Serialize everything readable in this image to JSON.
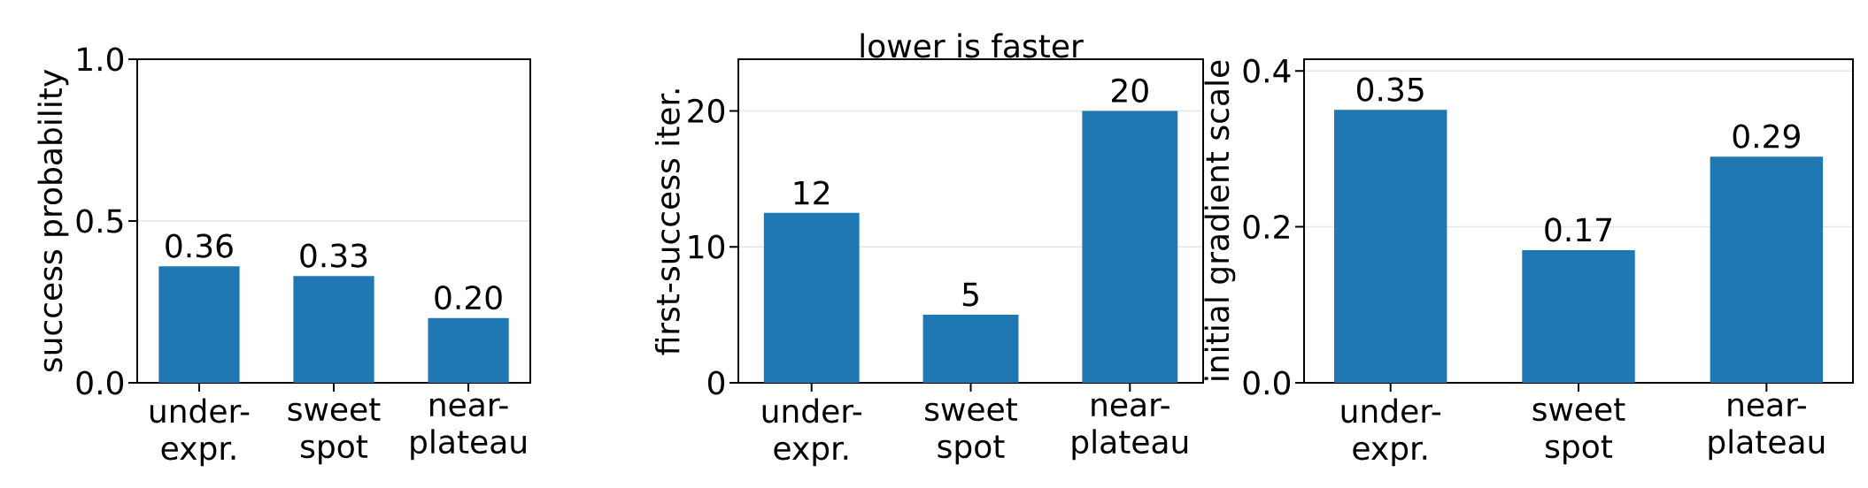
{
  "chart_data": [
    {
      "type": "bar",
      "ylabel": "success probability",
      "categories": [
        "under-expr.",
        "sweet spot",
        "near-plateau"
      ],
      "values": [
        0.36,
        0.33,
        0.2
      ],
      "value_labels": [
        "0.36",
        "0.33",
        "0.20"
      ],
      "color": "#1f77b4",
      "ylim": [
        0,
        1.0
      ],
      "yticks": [
        {
          "value": 0,
          "label": "0.0"
        },
        {
          "value": 0.5,
          "label": "0.5"
        },
        {
          "value": 1.0,
          "label": "1.0"
        }
      ],
      "grid": "y"
    },
    {
      "type": "bar",
      "title": "lower is faster",
      "ylabel": "first-success iter.",
      "categories": [
        "under-expr.",
        "sweet spot",
        "near-plateau"
      ],
      "values": [
        12.5,
        5,
        20
      ],
      "value_labels": [
        "12",
        "5",
        "20"
      ],
      "color": "#1f77b4",
      "ylim": [
        0,
        23.8
      ],
      "yticks": [
        0,
        10,
        20
      ],
      "grid": "y"
    },
    {
      "type": "bar",
      "ylabel": "initial gradient scale",
      "categories": [
        "under-expr.",
        "sweet spot",
        "near-plateau"
      ],
      "values": [
        0.35,
        0.17,
        0.29
      ],
      "value_labels": [
        "0.35",
        "0.17",
        "0.29"
      ],
      "color": "#1f77b4",
      "ylim": [
        0,
        0.415
      ],
      "yticks": [
        {
          "value": 0,
          "label": "0.0"
        },
        {
          "value": 0.2,
          "label": "0.2"
        },
        {
          "value": 0.4,
          "label": "0.4"
        }
      ],
      "grid": "y"
    }
  ]
}
